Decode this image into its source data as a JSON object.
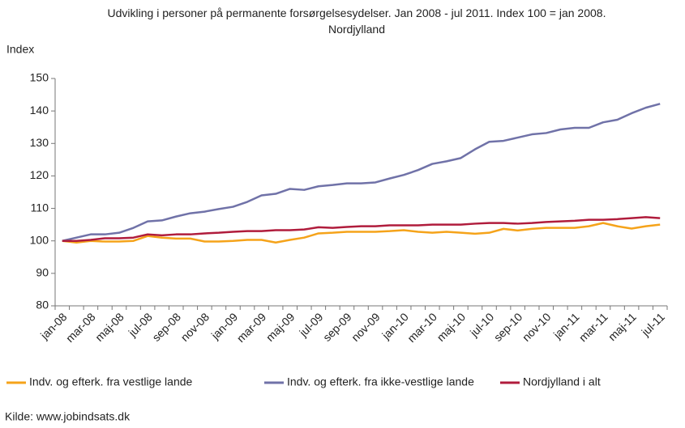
{
  "chart_data": {
    "type": "line",
    "title": "Udvikling i personer på permanente forsørgelsesydelser. Jan 2008 - jul 2011. Index 100 = jan 2008. Nordjylland",
    "y_label": "Index",
    "source": "Kilde: www.jobindsats.dk",
    "categories": [
      "jan-08",
      null,
      "mar-08",
      null,
      "maj-08",
      null,
      "jul-08",
      null,
      "sep-08",
      null,
      "nov-08",
      null,
      "jan-09",
      null,
      "mar-09",
      null,
      "maj-09",
      null,
      "jul-09",
      null,
      "sep-09",
      null,
      "nov-09",
      null,
      "jan-10",
      null,
      "mar-10",
      null,
      "maj-10",
      null,
      "jul-10",
      null,
      "sep-10",
      null,
      "nov-10",
      null,
      "jan-11",
      null,
      "mar-11",
      null,
      "maj-11",
      null,
      "jul-11"
    ],
    "series": [
      {
        "name": "Indv. og efterk. fra vestlige lande",
        "color": "#f5a31a",
        "values": [
          100,
          99.5,
          100,
          99.8,
          99.8,
          100,
          101.5,
          101,
          100.7,
          100.7,
          99.8,
          99.8,
          100,
          100.3,
          100.3,
          99.5,
          100.3,
          101,
          102.3,
          102.5,
          102.8,
          102.8,
          102.8,
          103,
          103.3,
          102.8,
          102.5,
          102.8,
          102.5,
          102.2,
          102.5,
          103.7,
          103.2,
          103.7,
          104,
          104,
          104,
          104.5,
          105.5,
          104.5,
          103.8,
          104.5,
          105
        ]
      },
      {
        "name": "Indv. og efterk. fra ikke-vestlige lande",
        "color": "#7072a8",
        "values": [
          100,
          101,
          102,
          102,
          102.5,
          104,
          106,
          106.3,
          107.5,
          108.5,
          109,
          109.8,
          110.5,
          112,
          114,
          114.5,
          116,
          115.7,
          116.8,
          117.2,
          117.7,
          117.7,
          118,
          119.2,
          120.3,
          121.8,
          123.7,
          124.5,
          125.5,
          128.2,
          130.5,
          130.8,
          131.8,
          132.8,
          133.2,
          134.3,
          134.8,
          134.8,
          136.5,
          137.3,
          139.3,
          141,
          142.2
        ]
      },
      {
        "name": "Nordjylland i alt",
        "color": "#b01c3c",
        "values": [
          100,
          100,
          100.3,
          100.8,
          100.8,
          101,
          102,
          101.7,
          102,
          102,
          102.3,
          102.5,
          102.8,
          103,
          103,
          103.3,
          103.3,
          103.5,
          104.2,
          104,
          104.3,
          104.5,
          104.5,
          104.8,
          104.8,
          104.8,
          105,
          105,
          105,
          105.3,
          105.5,
          105.5,
          105.3,
          105.5,
          105.8,
          106,
          106.2,
          106.5,
          106.5,
          106.7,
          107,
          107.3,
          107
        ]
      }
    ],
    "ylim": [
      80,
      150
    ],
    "yticks": [
      80,
      90,
      100,
      110,
      120,
      130,
      140,
      150
    ],
    "grid": false,
    "legend": "bottom"
  }
}
